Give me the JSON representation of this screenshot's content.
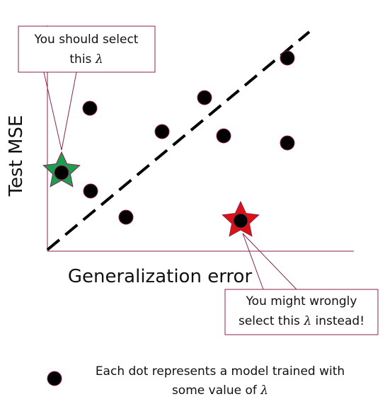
{
  "axes": {
    "x_label": "Generalization error",
    "y_label": "Test MSE",
    "axis_color": "#8b2252"
  },
  "reference_line": {
    "style": "dashed",
    "color": "#000000"
  },
  "dots": {
    "color": "#000000",
    "outline": "#8b2252",
    "count": 11
  },
  "stars": {
    "good": {
      "color": "#1a9f50"
    },
    "bad": {
      "color": "#dd1111"
    }
  },
  "callouts": {
    "good": {
      "line1": "You should select",
      "line2_prefix": "this ",
      "line2_symbol": "λ"
    },
    "bad": {
      "line1": "You might wrongly",
      "line2_prefix": "select this ",
      "line2_symbol": "λ",
      "line2_suffix": " instead!"
    }
  },
  "legend": {
    "line1": "Each dot represents a model trained with",
    "line2_prefix": "some value of ",
    "line2_symbol": "λ"
  }
}
